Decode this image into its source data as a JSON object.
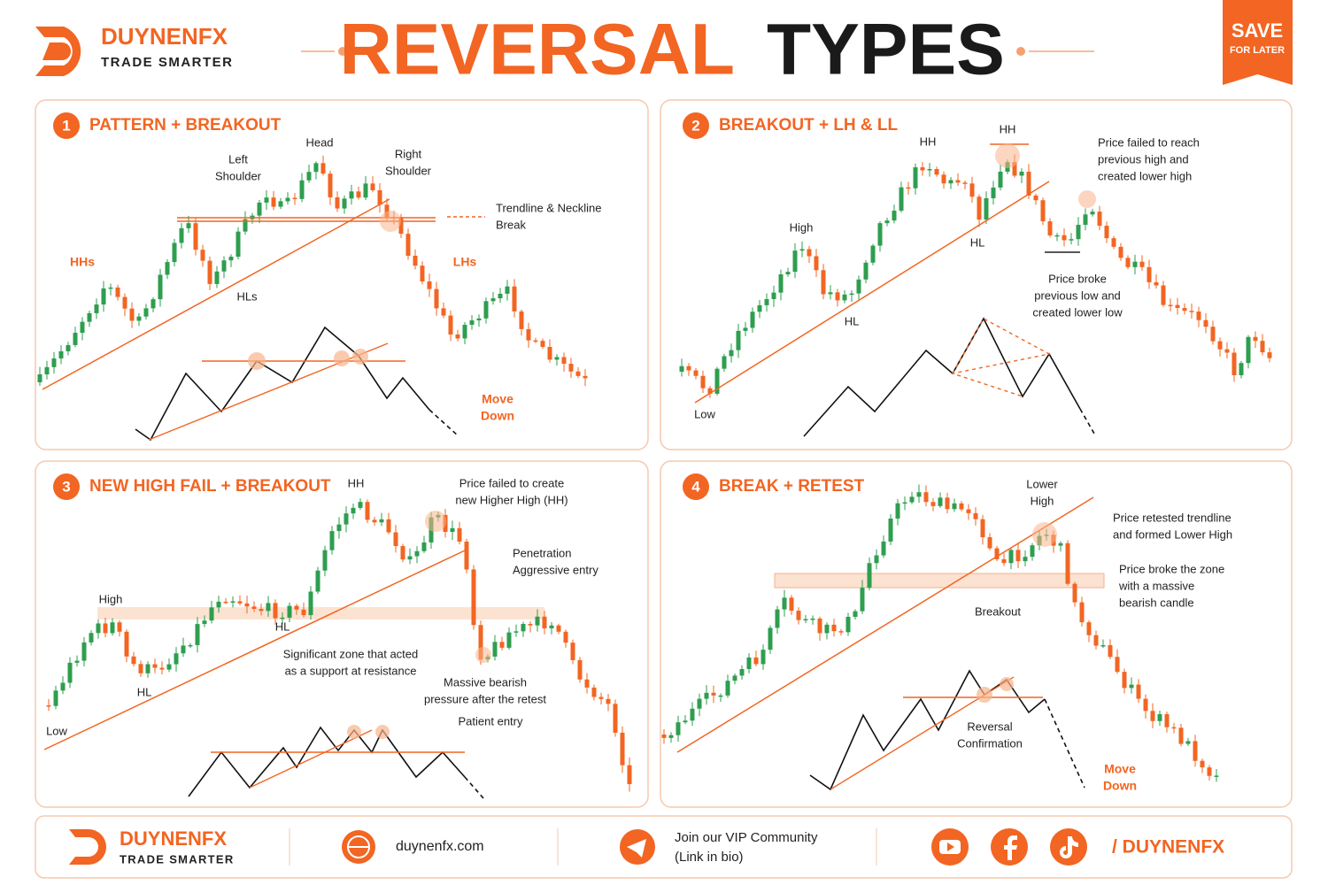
{
  "header": {
    "brand_name": "DUYNENFX",
    "brand_tagline": "TRADE SMARTER",
    "title_part1": "REVERSAL",
    "title_part2": "TYPES",
    "save_label": "SAVE",
    "save_sub": "FOR LATER"
  },
  "panels": [
    {
      "number": 1,
      "title": "PATTERN + BREAKOUT",
      "annotations": [
        {
          "lines": [
            "Head"
          ]
        },
        {
          "lines": [
            "Left",
            "Shoulder"
          ]
        },
        {
          "lines": [
            "Right",
            "Shoulder"
          ]
        },
        {
          "lines": [
            "Trendline & Neckline",
            "Break"
          ]
        },
        {
          "lines": [
            "HHs"
          ]
        },
        {
          "lines": [
            "LHs"
          ]
        },
        {
          "lines": [
            "HLs"
          ]
        },
        {
          "lines": [
            "Move",
            "Down"
          ]
        }
      ]
    },
    {
      "number": 2,
      "title": "BREAKOUT + LH & LL",
      "annotations": [
        {
          "lines": [
            "HH"
          ]
        },
        {
          "lines": [
            "HH"
          ]
        },
        {
          "lines": [
            "High"
          ]
        },
        {
          "lines": [
            "HL"
          ]
        },
        {
          "lines": [
            "HL"
          ]
        },
        {
          "lines": [
            "Low"
          ]
        },
        {
          "lines": [
            "Price failed to reach",
            "previous high and",
            "created lower high"
          ]
        },
        {
          "lines": [
            "Price broke",
            "previous low and",
            "created lower low"
          ]
        }
      ]
    },
    {
      "number": 3,
      "title": "NEW HIGH FAIL + BREAKOUT",
      "annotations": [
        {
          "lines": [
            "HH"
          ]
        },
        {
          "lines": [
            "High"
          ]
        },
        {
          "lines": [
            "HL"
          ]
        },
        {
          "lines": [
            "HL"
          ]
        },
        {
          "lines": [
            "Low"
          ]
        },
        {
          "lines": [
            "Price failed to create",
            "new Higher High (HH)"
          ]
        },
        {
          "lines": [
            "Penetration",
            "Aggressive entry"
          ]
        },
        {
          "lines": [
            "Significant zone that acted",
            "as a support at resistance"
          ]
        },
        {
          "lines": [
            "Massive bearish",
            "pressure after the retest"
          ]
        },
        {
          "lines": [
            "Patient entry"
          ]
        }
      ]
    },
    {
      "number": 4,
      "title": "BREAK + RETEST",
      "annotations": [
        {
          "lines": [
            "Lower",
            "High"
          ]
        },
        {
          "lines": [
            "Price retested trendline",
            "and formed Lower High"
          ]
        },
        {
          "lines": [
            "Price broke the zone",
            "with a massive",
            "bearish candle"
          ]
        },
        {
          "lines": [
            "Breakout"
          ]
        },
        {
          "lines": [
            "Reversal",
            "Confirmation"
          ]
        },
        {
          "lines": [
            "Move",
            "Down"
          ]
        }
      ]
    }
  ],
  "footer": {
    "brand_name": "DUYNENFX",
    "brand_tagline": "TRADE SMARTER",
    "website": "duynenfx.com",
    "community": [
      "Join our VIP Community",
      "(Link in bio)"
    ],
    "social_handle": "/ DUYNENFX"
  }
}
